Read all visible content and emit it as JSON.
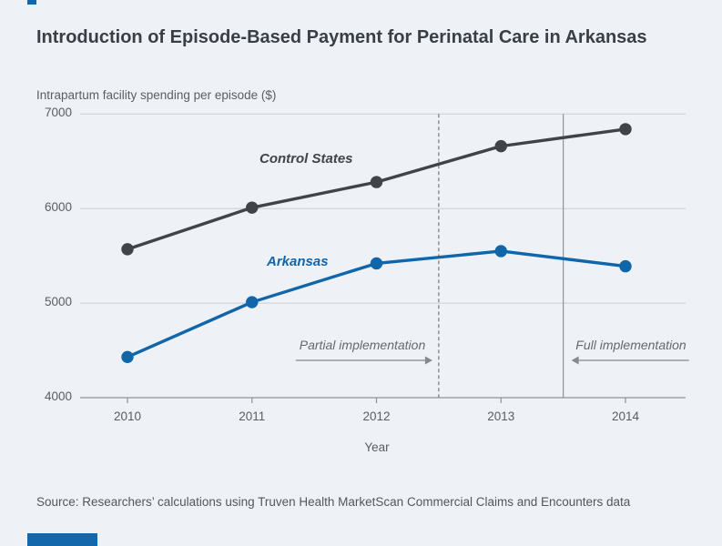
{
  "page": {
    "background": "#eef2f7",
    "accent_color": "#1467ab"
  },
  "header": {
    "title": "Introduction of Episode-Based Payment for Perinatal Care in Arkansas"
  },
  "chart_data": {
    "type": "line",
    "title": "Introduction of Episode-Based Payment for Perinatal Care in Arkansas",
    "ylabel": "Intrapartum facility spending per episode ($)",
    "xlabel": "Year",
    "categories": [
      "2010",
      "2011",
      "2012",
      "2013",
      "2014"
    ],
    "series": [
      {
        "name": "Control States",
        "color": "#404347",
        "values": [
          5570,
          6010,
          6280,
          6660,
          6840
        ]
      },
      {
        "name": "Arkansas",
        "color": "#1165a9",
        "values": [
          4430,
          5010,
          5420,
          5550,
          5390
        ]
      }
    ],
    "ylim": [
      4000,
      7000
    ],
    "yticks": [
      7000,
      6000,
      5000,
      4000
    ],
    "grid": "horizontal",
    "legend_position": "inline-labels",
    "vlines": [
      {
        "x": 2012.5,
        "style": "dashed"
      },
      {
        "x": 2013.5,
        "style": "solid"
      }
    ],
    "annotations": {
      "partial": {
        "label": "Partial implementation",
        "arrow": "right"
      },
      "full": {
        "label": "Full implementation",
        "arrow": "left"
      }
    }
  },
  "footer": {
    "source": "Source: Researchers’ calculations using Truven Health MarketScan Commercial Claims and Encounters data"
  }
}
